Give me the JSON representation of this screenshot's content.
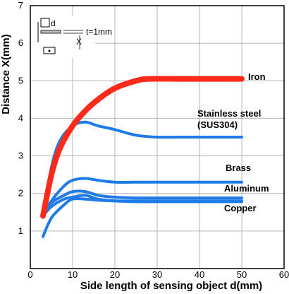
{
  "chart_data": {
    "type": "line",
    "xlabel": "Side length of sensing object d(mm)",
    "ylabel": "Distance X(mm)",
    "xlim": [
      0,
      60
    ],
    "ylim": [
      0,
      7
    ],
    "xticks": [
      "0",
      "10",
      "20",
      "30",
      "40",
      "50",
      "60"
    ],
    "yticks": [
      "0",
      "1",
      "2",
      "3",
      "4",
      "5",
      "6",
      "7"
    ],
    "grid": true,
    "series": [
      {
        "name": "Iron",
        "color": "#ff2a1a",
        "x": [
          3,
          5,
          7,
          10,
          13,
          16,
          20,
          25,
          28,
          35,
          40,
          50
        ],
        "y": [
          1.4,
          2.5,
          3.2,
          3.8,
          4.2,
          4.5,
          4.8,
          5.0,
          5.05,
          5.05,
          5.05,
          5.05
        ]
      },
      {
        "name": "Stainless steel (SUS304)",
        "color": "#1e7be8",
        "x": [
          3,
          5,
          7,
          10,
          13,
          16,
          20,
          25,
          30,
          35,
          40,
          50
        ],
        "y": [
          1.4,
          2.7,
          3.4,
          3.8,
          3.9,
          3.8,
          3.7,
          3.55,
          3.5,
          3.5,
          3.5,
          3.5
        ]
      },
      {
        "name": "Brass",
        "color": "#1e7be8",
        "x": [
          3,
          5,
          8,
          10,
          13,
          16,
          20,
          25,
          30,
          40,
          50
        ],
        "y": [
          1.4,
          1.8,
          2.2,
          2.35,
          2.4,
          2.35,
          2.3,
          2.3,
          2.3,
          2.3,
          2.3
        ]
      },
      {
        "name": "Aluminum",
        "color": "#1e7be8",
        "x": [
          3,
          5,
          8,
          10,
          13,
          16,
          20,
          25,
          30,
          40,
          50
        ],
        "y": [
          1.4,
          1.75,
          1.95,
          2.05,
          2.05,
          1.95,
          1.9,
          1.88,
          1.88,
          1.88,
          1.88
        ]
      },
      {
        "name": "Copper",
        "color": "#1e7be8",
        "x": [
          3,
          5,
          8,
          10,
          13,
          16,
          20,
          25,
          30,
          40,
          50
        ],
        "y": [
          1.4,
          1.65,
          1.85,
          1.9,
          1.95,
          1.85,
          1.8,
          1.78,
          1.78,
          1.78,
          1.78
        ]
      },
      {
        "name": "",
        "color": "#1e7be8",
        "x": [
          3,
          5,
          8,
          10,
          13,
          16,
          20,
          25,
          30,
          40,
          50
        ],
        "y": [
          0.85,
          1.35,
          1.7,
          1.85,
          1.85,
          1.82,
          1.8,
          1.8,
          1.8,
          1.8,
          1.8
        ]
      }
    ],
    "labels": {
      "iron": "Iron",
      "stainless_line1": "Stainless steel",
      "stainless_line2": "(SUS304)",
      "brass": "Brass",
      "aluminum": "Aluminum",
      "copper": "Copper"
    },
    "inset": {
      "d_label": "d",
      "t_label": "t=1mm",
      "x_label": "X"
    }
  }
}
